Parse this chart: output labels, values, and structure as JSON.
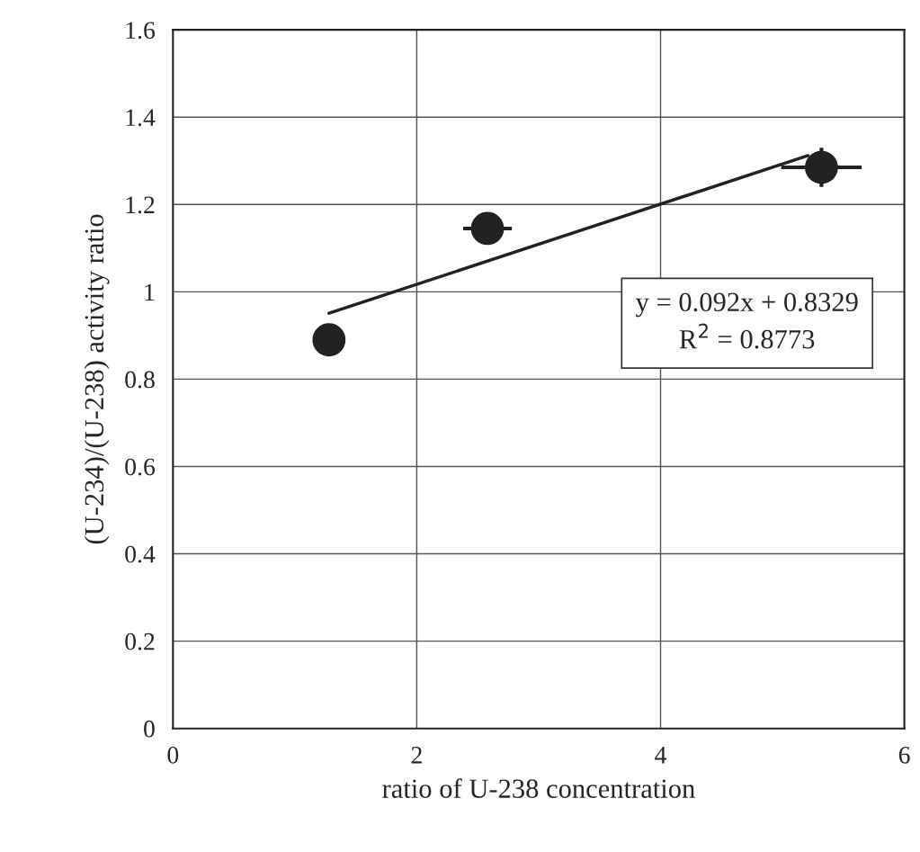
{
  "chart_data": {
    "type": "scatter",
    "xlabel": "ratio of U-238 concentration",
    "ylabel": "(U-234)/(U-238) activity ratio",
    "series": [
      {
        "color": "#222222",
        "x": [
          1.28,
          2.58,
          5.32
        ],
        "values": [
          0.89,
          1.145,
          1.285
        ],
        "xerrors": [
          null,
          0.2,
          0.33
        ],
        "errors": [
          null,
          null,
          0.045
        ],
        "marker": "circle"
      },
      {
        "type": "line",
        "color": "#222222",
        "x": [
          1.28,
          5.21
        ],
        "values": [
          0.951,
          1.312
        ],
        "marker": "none"
      }
    ],
    "annotations": [
      "y = 0.092x + 0.8329\nR$^{2}$ = 0.8773"
    ],
    "xlim": [
      0,
      6
    ],
    "xticks": [
      0,
      2,
      4,
      6
    ],
    "ylim": [
      0,
      1.6
    ],
    "yticks": [
      0,
      0.2,
      0.4,
      0.6,
      0.8,
      1,
      1.2,
      1.4,
      1.6
    ],
    "grid": true,
    "legend": false
  }
}
